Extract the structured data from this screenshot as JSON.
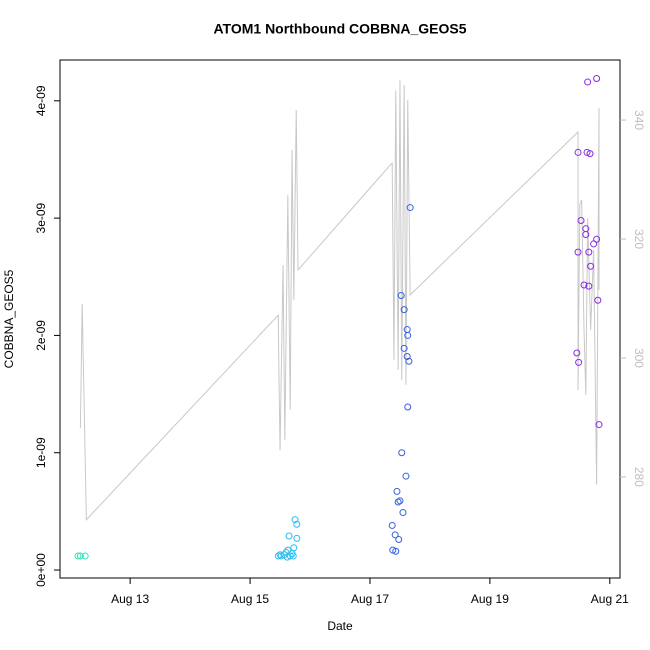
{
  "chart_data": {
    "type": "scatter",
    "title": "ATOM1 Northbound COBBNA_GEOS5",
    "x_label": "Date",
    "y_label": "COBBNA_GEOS5",
    "xlim": [
      11.83,
      21.17
    ],
    "xticks": [
      {
        "value": 13,
        "label": "Aug 13"
      },
      {
        "value": 15,
        "label": "Aug 15"
      },
      {
        "value": 17,
        "label": "Aug 17"
      },
      {
        "value": 19,
        "label": "Aug 19"
      },
      {
        "value": 21,
        "label": "Aug 21"
      }
    ],
    "ylim": [
      -6.8e-11,
      4.348e-09
    ],
    "yticks": [
      {
        "value": 0,
        "label": "0e+00"
      },
      {
        "value": 1e-09,
        "label": "1e-09"
      },
      {
        "value": 2e-09,
        "label": "2e-09"
      },
      {
        "value": 3e-09,
        "label": "3e-09"
      },
      {
        "value": 4e-09,
        "label": "4e-09"
      }
    ],
    "y2lim": [
      263,
      350.1
    ],
    "y2ticks": [
      280,
      300,
      320,
      340
    ],
    "y2_color": "#bebebe",
    "series": [
      {
        "color": "#2ee6b8",
        "x": [
          12.13,
          12.17,
          12.25
        ],
        "values": [
          1.2e-10,
          1.2e-10,
          1.2e-10
        ]
      },
      {
        "color": "#2bbdf0",
        "x": [
          15.47,
          15.52,
          15.57,
          15.6,
          15.63,
          15.67,
          15.7,
          15.73,
          15.65,
          15.75,
          15.78,
          15.78,
          15.62,
          15.5,
          15.72
        ],
        "values": [
          1.2e-10,
          1.2e-10,
          1.3e-10,
          1.5e-10,
          1.7e-10,
          1.2e-10,
          1.4e-10,
          1.9e-10,
          2.9e-10,
          4.3e-10,
          3.9e-10,
          2.7e-10,
          1.1e-10,
          1.3e-10,
          1.2e-10
        ]
      },
      {
        "color": "#3560e0",
        "x": [
          17.37,
          17.42,
          17.38,
          17.43,
          17.45,
          17.47,
          17.5,
          17.48,
          17.55,
          17.6,
          17.53,
          17.52,
          17.57,
          17.57,
          17.62,
          17.63,
          17.62,
          17.65,
          17.63,
          17.67
        ],
        "values": [
          3.8e-10,
          3e-10,
          1.7e-10,
          1.6e-10,
          6.7e-10,
          5.8e-10,
          5.9e-10,
          2.6e-10,
          4.9e-10,
          8e-10,
          1e-09,
          2.34e-09,
          2.22e-09,
          1.89e-09,
          2.05e-09,
          2e-09,
          1.82e-09,
          1.78e-09,
          1.39e-09,
          3.09e-09
        ]
      },
      {
        "color": "#8a2be2",
        "x": [
          20.45,
          20.48,
          20.47,
          20.47,
          20.52,
          20.57,
          20.6,
          20.6,
          20.62,
          20.65,
          20.65,
          20.67,
          20.68,
          20.73,
          20.78,
          20.8,
          20.82,
          20.78,
          20.63
        ],
        "values": [
          1.85e-09,
          1.77e-09,
          3.56e-09,
          2.71e-09,
          2.98e-09,
          2.43e-09,
          2.91e-09,
          2.86e-09,
          3.56e-09,
          2.42e-09,
          2.71e-09,
          3.55e-09,
          2.59e-09,
          2.78e-09,
          2.82e-09,
          2.3e-09,
          1.24e-09,
          4.19e-09,
          4.16e-09
        ]
      },
      {
        "type": "line",
        "axis": "y2",
        "color": "#c8c8c8",
        "x": [
          12.17,
          12.2,
          12.27,
          15.47,
          15.48,
          15.5,
          15.55,
          15.58,
          15.63,
          15.67,
          15.7,
          15.73,
          15.77,
          15.8,
          17.37,
          17.4,
          17.43,
          17.47,
          17.5,
          17.53,
          17.57,
          17.6,
          17.63,
          17.67,
          20.47,
          20.47,
          20.5,
          20.53,
          20.57,
          20.6,
          20.63,
          20.68,
          20.73,
          20.78,
          20.82,
          20.82
        ],
        "values": [
          288.2,
          309.1,
          272.8,
          307.2,
          298.7,
          284.5,
          315.6,
          286.2,
          327.4,
          291.3,
          335.0,
          309.7,
          341.7,
          314.8,
          332.8,
          299.7,
          345.0,
          298.0,
          346.7,
          296.3,
          345.9,
          295.5,
          343.4,
          310.6,
          338.0,
          294.6,
          325.7,
          326.6,
          304.7,
          293.8,
          323.5,
          304.7,
          318.2,
          278.7,
          342.0,
          311.4
        ]
      }
    ]
  }
}
